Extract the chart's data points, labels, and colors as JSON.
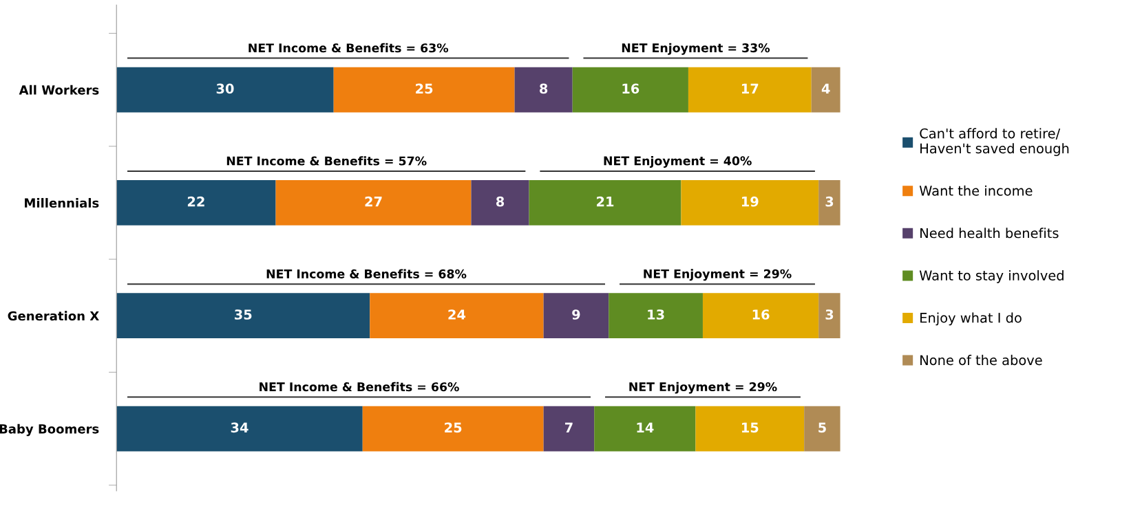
{
  "chart_data": {
    "type": "bar",
    "orientation": "horizontal",
    "stacked": true,
    "relative": false,
    "data_labels": true,
    "legend": "right",
    "grid": false,
    "categories": [
      "All Workers",
      "Millennials",
      "Generation X",
      "Baby Boomers"
    ],
    "series": [
      {
        "name": "Can't afford to retire/\nHaven't saved enough",
        "color": "#1b4f6e",
        "values": [
          30,
          22,
          35,
          34
        ]
      },
      {
        "name": "Want the income",
        "color": "#ef7f0f",
        "values": [
          25,
          27,
          24,
          25
        ]
      },
      {
        "name": "Need health benefits",
        "color": "#56416b",
        "values": [
          8,
          8,
          9,
          7
        ]
      },
      {
        "name": "Want to stay involved",
        "color": "#5f8c22",
        "values": [
          16,
          21,
          13,
          14
        ]
      },
      {
        "name": "Enjoy what I do",
        "color": "#e2aa00",
        "values": [
          17,
          19,
          16,
          15
        ]
      },
      {
        "name": "None of the above",
        "color": "#b08b55",
        "values": [
          4,
          3,
          3,
          5
        ]
      }
    ],
    "annotations": [
      "NET Income & Benefits = 63%",
      "NET Enjoyment = 33%",
      "NET Income & Benefits = 57%",
      "NET Enjoyment = 40%",
      "NET Income & Benefits = 68%",
      "NET Enjoyment = 29%",
      "NET Income & Benefits = 66%",
      "NET Enjoyment = 29%"
    ]
  }
}
